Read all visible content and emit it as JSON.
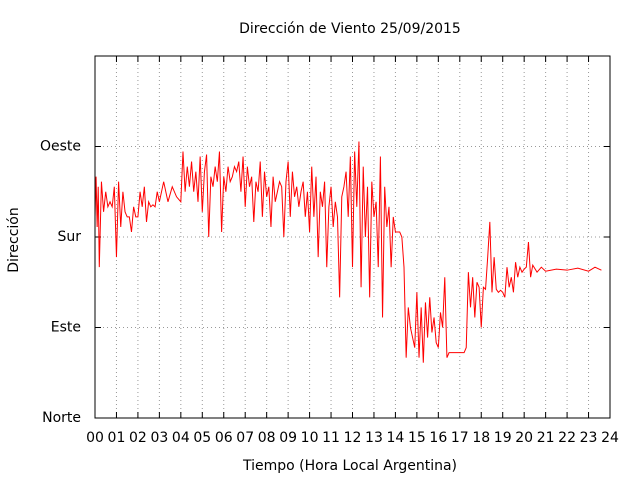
{
  "chart_data": {
    "type": "line",
    "title": "Dirección de Viento 25/09/2015",
    "x_label": "Tiempo (Hora Local Argentina)",
    "y_label": "Dirección",
    "xlim": [
      0,
      24
    ],
    "xticks": [
      {
        "value": 0,
        "label": "00"
      },
      {
        "value": 1,
        "label": "01"
      },
      {
        "value": 2,
        "label": "02"
      },
      {
        "value": 3,
        "label": "03"
      },
      {
        "value": 4,
        "label": "04"
      },
      {
        "value": 5,
        "label": "05"
      },
      {
        "value": 6,
        "label": "06"
      },
      {
        "value": 7,
        "label": "07"
      },
      {
        "value": 8,
        "label": "08"
      },
      {
        "value": 9,
        "label": "09"
      },
      {
        "value": 10,
        "label": "10"
      },
      {
        "value": 11,
        "label": "11"
      },
      {
        "value": 12,
        "label": "12"
      },
      {
        "value": 13,
        "label": "13"
      },
      {
        "value": 14,
        "label": "14"
      },
      {
        "value": 15,
        "label": "15"
      },
      {
        "value": 16,
        "label": "16"
      },
      {
        "value": 17,
        "label": "17"
      },
      {
        "value": 18,
        "label": "18"
      },
      {
        "value": 19,
        "label": "19"
      },
      {
        "value": 20,
        "label": "20"
      },
      {
        "value": 21,
        "label": "21"
      },
      {
        "value": 22,
        "label": "22"
      },
      {
        "value": 23,
        "label": "23"
      },
      {
        "value": 24,
        "label": "24"
      }
    ],
    "ylim": [
      0,
      360
    ],
    "yticks": [
      {
        "value": 0,
        "label": "Norte"
      },
      {
        "value": 90,
        "label": "Este"
      },
      {
        "value": 180,
        "label": "Sur"
      },
      {
        "value": 270,
        "label": "Oeste"
      }
    ],
    "grid": true,
    "x": [
      0,
      0.05,
      0.1,
      0.15,
      0.2,
      0.3,
      0.4,
      0.5,
      0.6,
      0.7,
      0.8,
      0.9,
      1.0,
      1.1,
      1.2,
      1.3,
      1.4,
      1.5,
      1.6,
      1.7,
      1.8,
      1.9,
      2.0,
      2.1,
      2.2,
      2.3,
      2.4,
      2.5,
      2.6,
      2.7,
      2.8,
      2.9,
      3.0,
      3.2,
      3.4,
      3.6,
      3.8,
      4.0,
      4.1,
      4.2,
      4.3,
      4.4,
      4.5,
      4.6,
      4.7,
      4.8,
      4.9,
      5.0,
      5.1,
      5.2,
      5.3,
      5.4,
      5.5,
      5.6,
      5.7,
      5.8,
      5.9,
      6.0,
      6.1,
      6.2,
      6.3,
      6.4,
      6.5,
      6.6,
      6.7,
      6.8,
      6.9,
      7.0,
      7.1,
      7.2,
      7.3,
      7.4,
      7.5,
      7.6,
      7.7,
      7.8,
      7.9,
      8.0,
      8.1,
      8.2,
      8.3,
      8.4,
      8.5,
      8.6,
      8.7,
      8.8,
      8.9,
      9.0,
      9.1,
      9.2,
      9.3,
      9.4,
      9.5,
      9.6,
      9.7,
      9.8,
      9.9,
      10.0,
      10.1,
      10.2,
      10.3,
      10.4,
      10.5,
      10.6,
      10.7,
      10.8,
      10.9,
      11.0,
      11.1,
      11.2,
      11.3,
      11.4,
      11.5,
      11.6,
      11.7,
      11.8,
      11.9,
      12.0,
      12.1,
      12.2,
      12.3,
      12.4,
      12.5,
      12.6,
      12.7,
      12.8,
      12.9,
      13.0,
      13.1,
      13.2,
      13.3,
      13.4,
      13.5,
      13.6,
      13.7,
      13.8,
      13.9,
      14.0,
      14.2,
      14.3,
      14.4,
      14.5,
      14.6,
      14.7,
      14.8,
      14.9,
      15.0,
      15.1,
      15.2,
      15.3,
      15.4,
      15.5,
      15.6,
      15.7,
      15.8,
      15.9,
      16.0,
      16.1,
      16.2,
      16.3,
      16.4,
      16.5,
      16.8,
      17.2,
      17.3,
      17.4,
      17.5,
      17.6,
      17.7,
      17.8,
      17.9,
      18.0,
      18.1,
      18.2,
      18.3,
      18.4,
      18.5,
      18.6,
      18.7,
      18.8,
      18.9,
      19.0,
      19.1,
      19.2,
      19.3,
      19.4,
      19.5,
      19.6,
      19.7,
      19.8,
      19.9,
      20.0,
      20.1,
      20.2,
      20.3,
      20.4,
      20.6,
      20.8,
      21.0,
      21.5,
      22.0,
      22.5,
      23.0,
      23.3,
      23.6
    ],
    "series": [
      {
        "name": "Dirección",
        "color": "#ff0000",
        "values": [
          200,
          240,
          190,
          230,
          150,
          235,
          205,
          225,
          210,
          215,
          210,
          230,
          160,
          235,
          190,
          225,
          205,
          200,
          200,
          185,
          210,
          200,
          200,
          225,
          210,
          230,
          195,
          215,
          210,
          212,
          210,
          225,
          215,
          235,
          215,
          230,
          220,
          215,
          265,
          225,
          250,
          230,
          255,
          225,
          245,
          215,
          260,
          205,
          245,
          262,
          180,
          240,
          230,
          250,
          235,
          265,
          185,
          240,
          225,
          250,
          235,
          240,
          250,
          245,
          255,
          225,
          260,
          210,
          250,
          230,
          240,
          195,
          235,
          225,
          255,
          200,
          245,
          220,
          230,
          190,
          240,
          215,
          225,
          235,
          230,
          180,
          235,
          255,
          200,
          245,
          220,
          230,
          210,
          225,
          235,
          200,
          225,
          185,
          250,
          200,
          240,
          160,
          225,
          210,
          235,
          150,
          210,
          230,
          190,
          215,
          200,
          120,
          220,
          230,
          245,
          200,
          260,
          150,
          265,
          210,
          275,
          130,
          250,
          180,
          230,
          120,
          235,
          200,
          215,
          150,
          260,
          100,
          230,
          190,
          210,
          150,
          200,
          185,
          185,
          180,
          150,
          60,
          110,
          90,
          80,
          70,
          125,
          60,
          110,
          55,
          115,
          80,
          120,
          85,
          100,
          75,
          70,
          105,
          90,
          140,
          60,
          65,
          65,
          65,
          70,
          145,
          110,
          140,
          100,
          135,
          130,
          90,
          130,
          128,
          160,
          195,
          125,
          160,
          128,
          125,
          127,
          125,
          120,
          150,
          130,
          140,
          125,
          155,
          140,
          150,
          145,
          148,
          150,
          175,
          140,
          152,
          145,
          150,
          146,
          148,
          147,
          149,
          146,
          150,
          147
        ]
      }
    ]
  }
}
